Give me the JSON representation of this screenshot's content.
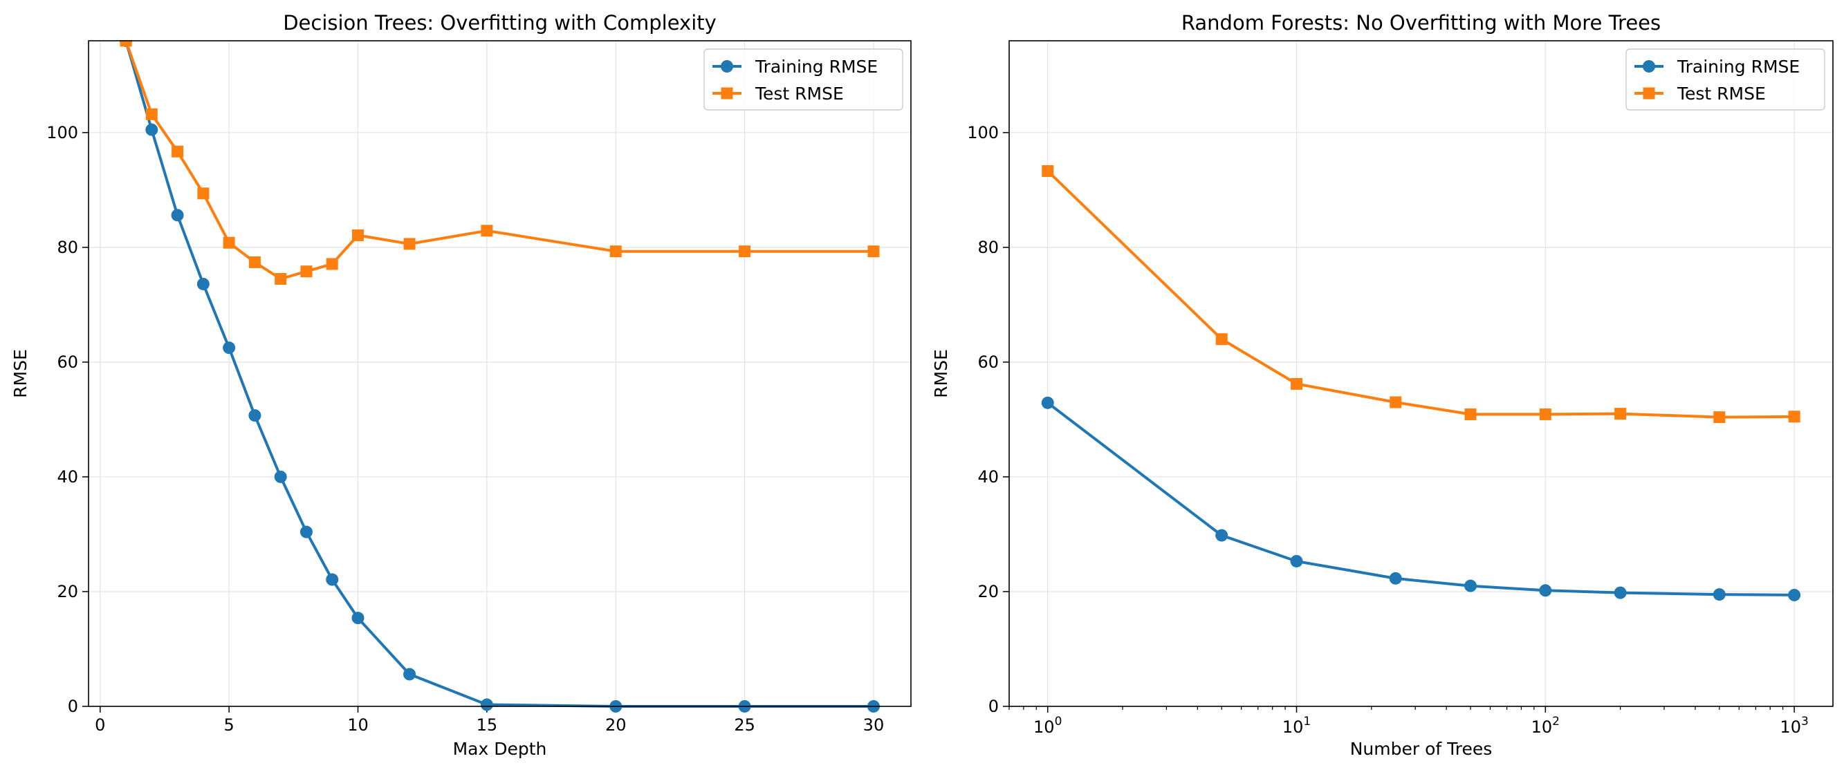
{
  "colors": {
    "training": "#1f77b4",
    "test": "#ff7f0e",
    "grid": "#e3e3e3"
  },
  "chart_data": [
    {
      "type": "line",
      "title": "Decision Trees: Overfitting with Complexity",
      "xlabel": "Max Depth",
      "ylabel": "RMSE",
      "xscale": "linear",
      "xlim": [
        -0.45,
        31.45
      ],
      "ylim": [
        0,
        116
      ],
      "x_ticks": [
        0,
        5,
        10,
        15,
        20,
        25,
        30
      ],
      "x_tick_labels": [
        "0",
        "5",
        "10",
        "15",
        "20",
        "25",
        "30"
      ],
      "y_ticks": [
        0,
        20,
        40,
        60,
        80,
        100
      ],
      "y_tick_labels": [
        "0",
        "20",
        "40",
        "60",
        "80",
        "100"
      ],
      "grid": true,
      "legend_position": "top-right",
      "x": [
        1,
        2,
        3,
        4,
        5,
        6,
        7,
        8,
        9,
        10,
        12,
        15,
        20,
        25,
        30
      ],
      "series": [
        {
          "name": "Training RMSE",
          "marker": "circle",
          "values": [
            116.0,
            100.5,
            85.6,
            73.6,
            62.5,
            50.7,
            40.0,
            30.4,
            22.1,
            15.4,
            5.6,
            0.3,
            0.0,
            0.0,
            0.0
          ]
        },
        {
          "name": "Test RMSE",
          "marker": "square",
          "values": [
            116.0,
            103.2,
            96.7,
            89.4,
            80.8,
            77.4,
            74.5,
            75.8,
            77.1,
            82.1,
            80.6,
            82.9,
            79.3,
            79.3,
            79.3
          ]
        }
      ]
    },
    {
      "type": "line",
      "title": "Random Forests: No Overfitting with More Trees",
      "xlabel": "Number of Trees",
      "ylabel": "RMSE",
      "xscale": "log",
      "xlim": [
        0.7,
        1430
      ],
      "ylim": [
        0,
        116
      ],
      "x_ticks": [
        1,
        10,
        100,
        1000
      ],
      "x_tick_labels": [
        "10^0",
        "10^1",
        "10^2",
        "10^3"
      ],
      "y_ticks": [
        0,
        20,
        40,
        60,
        80,
        100
      ],
      "y_tick_labels": [
        "0",
        "20",
        "40",
        "60",
        "80",
        "100"
      ],
      "grid": true,
      "legend_position": "top-right",
      "x": [
        1,
        5,
        10,
        25,
        50,
        100,
        200,
        500,
        1000
      ],
      "series": [
        {
          "name": "Training RMSE",
          "marker": "circle",
          "values": [
            52.9,
            29.8,
            25.3,
            22.3,
            21.0,
            20.2,
            19.8,
            19.5,
            19.4
          ]
        },
        {
          "name": "Test RMSE",
          "marker": "square",
          "values": [
            93.3,
            64.0,
            56.2,
            53.0,
            50.9,
            50.9,
            51.0,
            50.4,
            50.5
          ]
        }
      ]
    }
  ]
}
